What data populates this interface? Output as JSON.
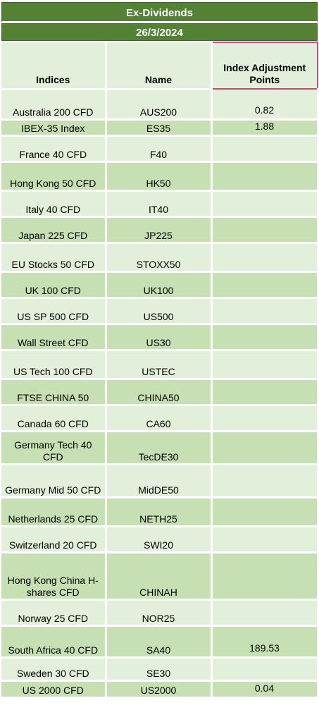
{
  "title": "Ex-Dividends",
  "date": "26/3/2024",
  "columns": [
    "Indices",
    "Name",
    "Index Adjustment Points"
  ],
  "rows": [
    {
      "index": "Australia 200 CFD",
      "name": "AUS200",
      "points": "0.82"
    },
    {
      "index": "IBEX-35 Index",
      "name": "ES35",
      "points": "1.88"
    },
    {
      "index": "France 40 CFD",
      "name": "F40",
      "points": ""
    },
    {
      "index": "Hong Kong 50 CFD",
      "name": "HK50",
      "points": ""
    },
    {
      "index": "Italy 40 CFD",
      "name": "IT40",
      "points": ""
    },
    {
      "index": "Japan 225 CFD",
      "name": "JP225",
      "points": ""
    },
    {
      "index": "EU Stocks 50 CFD",
      "name": "STOXX50",
      "points": ""
    },
    {
      "index": "UK 100 CFD",
      "name": "UK100",
      "points": ""
    },
    {
      "index": "US SP 500 CFD",
      "name": "US500",
      "points": ""
    },
    {
      "index": "Wall Street CFD",
      "name": "US30",
      "points": ""
    },
    {
      "index": "US Tech 100 CFD",
      "name": "USTEC",
      "points": ""
    },
    {
      "index": "FTSE CHINA 50",
      "name": "CHINA50",
      "points": ""
    },
    {
      "index": "Canada 60 CFD",
      "name": "CA60",
      "points": ""
    },
    {
      "index": "Germany Tech 40 CFD",
      "name": "TecDE30",
      "points": ""
    },
    {
      "index": "Germany Mid 50 CFD",
      "name": "MidDE50",
      "points": ""
    },
    {
      "index": "Netherlands 25 CFD",
      "name": "NETH25",
      "points": ""
    },
    {
      "index": "Switzerland 20 CFD",
      "name": "SWI20",
      "points": ""
    },
    {
      "index": "Hong Kong China H-shares CFD",
      "name": "CHINAH",
      "points": ""
    },
    {
      "index": "Norway 25 CFD",
      "name": "NOR25",
      "points": ""
    },
    {
      "index": "South Africa 40 CFD",
      "name": "SA40",
      "points": "189.53"
    },
    {
      "index": "Sweden 30 CFD",
      "name": "SE30",
      "points": ""
    },
    {
      "index": "US 2000 CFD",
      "name": "US2000",
      "points": "0.04"
    }
  ]
}
